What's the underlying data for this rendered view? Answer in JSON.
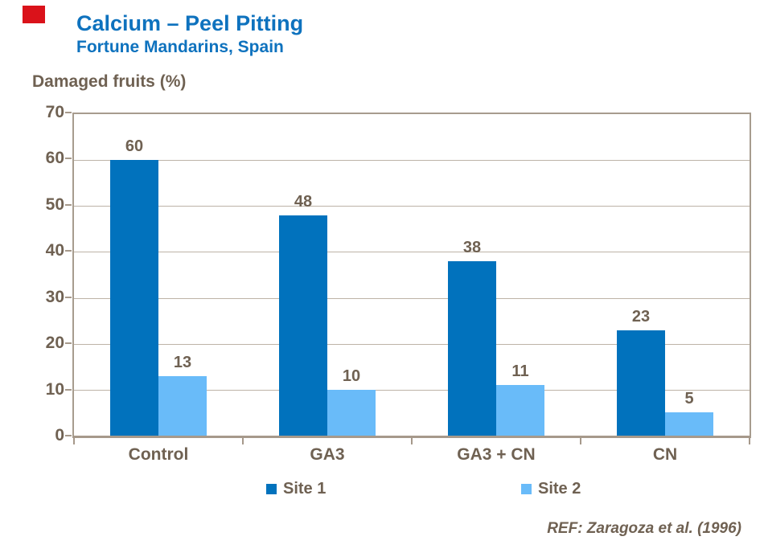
{
  "header": {
    "title": "Calcium – Peel Pitting",
    "subtitle": "Fortune Mandarins, Spain"
  },
  "axis_title": "Damaged fruits (%)",
  "chart_data": {
    "type": "bar",
    "title": "Calcium – Peel Pitting",
    "subtitle": "Fortune Mandarins, Spain",
    "ylabel": "Damaged fruits (%)",
    "xlabel": "",
    "categories": [
      "Control",
      "GA3",
      "GA3 + CN",
      "CN"
    ],
    "series": [
      {
        "name": "Site 1",
        "color": "#0172BD",
        "values": [
          60,
          48,
          38,
          23
        ]
      },
      {
        "name": "Site 2",
        "color": "#69BBF9",
        "values": [
          13,
          10,
          11,
          5
        ]
      }
    ],
    "ylim": [
      0,
      70
    ],
    "ytick_step": 10,
    "grid": true,
    "legend_position": "bottom"
  },
  "footer": {
    "ref": "REF: Zaragoza et al. (1996)"
  },
  "colors": {
    "title_blue": "#0E72BE",
    "text_brown": "#6F6152",
    "grid": "#BDB3A7",
    "plot_border": "#A79C8E",
    "axis_line": "#A6998B",
    "site1": "#0172BD",
    "site2": "#69BBF9",
    "accent_red": "#DA121A"
  }
}
